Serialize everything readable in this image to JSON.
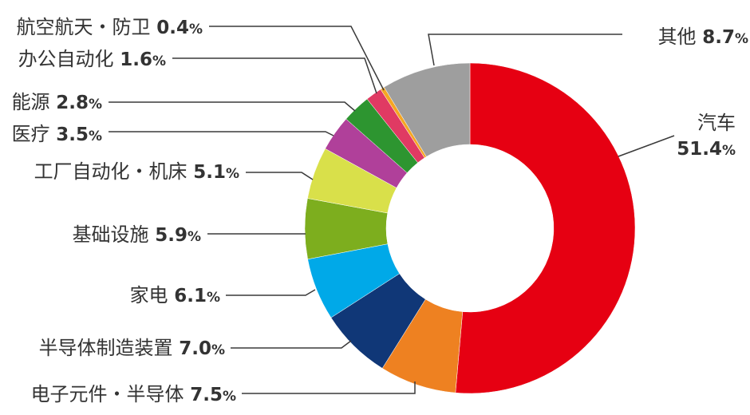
{
  "chart_data": {
    "type": "pie",
    "donut": true,
    "start_angle_deg": 0,
    "direction": "clockwise",
    "slices": [
      {
        "name": "汽车",
        "value": 51.4,
        "num": "51.4",
        "unit": "%",
        "color": "#e60012"
      },
      {
        "name": "电子元件・半导体",
        "value": 7.5,
        "num": "7.5",
        "unit": "%",
        "color": "#ee8121"
      },
      {
        "name": "半导体制造装置",
        "value": 7.0,
        "num": "7.0",
        "unit": "%",
        "color": "#103777"
      },
      {
        "name": "家电",
        "value": 6.1,
        "num": "6.1",
        "unit": "%",
        "color": "#00a9e8"
      },
      {
        "name": "基础设施",
        "value": 5.9,
        "num": "5.9",
        "unit": "%",
        "color": "#7dae1e"
      },
      {
        "name": "工厂自动化・机床",
        "value": 5.1,
        "num": "5.1",
        "unit": "%",
        "color": "#d9e04a"
      },
      {
        "name": "医疗",
        "value": 3.5,
        "num": "3.5",
        "unit": "%",
        "color": "#b0409a"
      },
      {
        "name": "能源",
        "value": 2.8,
        "num": "2.8",
        "unit": "%",
        "color": "#2d9530"
      },
      {
        "name": "办公自动化",
        "value": 1.6,
        "num": "1.6",
        "unit": "%",
        "color": "#e03a63"
      },
      {
        "name": "航空航天・防卫",
        "value": 0.4,
        "num": "0.4",
        "unit": "%",
        "color": "#f5a623"
      },
      {
        "name": "其他",
        "value": 8.7,
        "num": "8.7",
        "unit": "%",
        "color": "#9e9e9e"
      }
    ]
  }
}
